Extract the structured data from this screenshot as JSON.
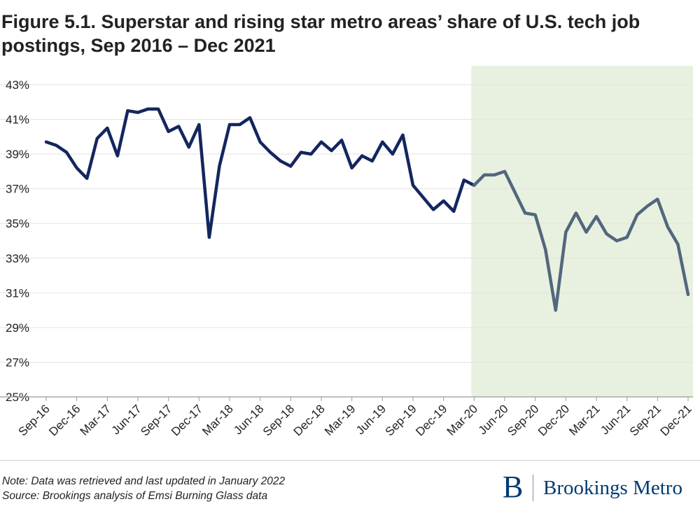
{
  "title": "Figure 5.1. Superstar and rising star metro areas’ share of U.S. tech job postings, Sep 2016 – Dec 2021",
  "note": "Note: Data was retrieved and last updated in January 2022",
  "source": "Source: Brookings analysis of Emsi Burning Glass data",
  "brand": {
    "mark": "B",
    "name": "Brookings Metro",
    "color": "#003a70"
  },
  "chart_data": {
    "type": "line",
    "ylim": [
      25,
      43
    ],
    "yticks": [
      "25%",
      "27%",
      "29%",
      "31%",
      "33%",
      "35%",
      "37%",
      "39%",
      "41%",
      "43%"
    ],
    "ytick_values": [
      25,
      27,
      29,
      31,
      33,
      35,
      37,
      39,
      41,
      43
    ],
    "xtick_labels": [
      "Sep-16",
      "Dec-16",
      "Mar-17",
      "Jun-17",
      "Sep-17",
      "Dec-17",
      "Mar-18",
      "Jun-18",
      "Sep-18",
      "Dec-18",
      "Mar-19",
      "Jun-19",
      "Sep-19",
      "Dec-19",
      "Mar-20",
      "Jun-20",
      "Sep-20",
      "Dec-20",
      "Mar-21",
      "Jun-21",
      "Sep-21",
      "Dec-21"
    ],
    "months": [
      "Sep-16",
      "Oct-16",
      "Nov-16",
      "Dec-16",
      "Jan-17",
      "Feb-17",
      "Mar-17",
      "Apr-17",
      "May-17",
      "Jun-17",
      "Jul-17",
      "Aug-17",
      "Sep-17",
      "Oct-17",
      "Nov-17",
      "Dec-17",
      "Jan-18",
      "Feb-18",
      "Mar-18",
      "Apr-18",
      "May-18",
      "Jun-18",
      "Jul-18",
      "Aug-18",
      "Sep-18",
      "Oct-18",
      "Nov-18",
      "Dec-18",
      "Jan-19",
      "Feb-19",
      "Mar-19",
      "Apr-19",
      "May-19",
      "Jun-19",
      "Jul-19",
      "Aug-19",
      "Sep-19",
      "Oct-19",
      "Nov-19",
      "Dec-19",
      "Jan-20",
      "Feb-20",
      "Mar-20",
      "Apr-20",
      "May-20",
      "Jun-20",
      "Jul-20",
      "Aug-20",
      "Sep-20",
      "Oct-20",
      "Nov-20",
      "Dec-20",
      "Jan-21",
      "Feb-21",
      "Mar-21",
      "Apr-21",
      "May-21",
      "Jun-21",
      "Jul-21",
      "Aug-21",
      "Sep-21",
      "Oct-21",
      "Nov-21",
      "Dec-21"
    ],
    "values": [
      39.7,
      39.5,
      39.1,
      38.2,
      37.6,
      39.9,
      40.5,
      38.9,
      41.5,
      41.4,
      41.6,
      41.6,
      40.3,
      40.6,
      39.4,
      40.7,
      34.2,
      38.3,
      40.7,
      40.7,
      41.1,
      39.7,
      39.1,
      38.6,
      38.3,
      39.1,
      39.0,
      39.7,
      39.2,
      39.8,
      38.2,
      38.9,
      38.6,
      39.7,
      39.0,
      40.1,
      37.2,
      36.5,
      35.8,
      36.3,
      35.7,
      37.5,
      37.2,
      37.8,
      37.8,
      38.0,
      36.8,
      35.6,
      35.5,
      33.5,
      30.0,
      34.5,
      35.6,
      34.5,
      35.4,
      34.4,
      34.0,
      34.2,
      35.5,
      36.0,
      36.4,
      34.8,
      33.8,
      30.9
    ],
    "highlight_range": [
      "Mar-20",
      "Dec-21"
    ],
    "colors": {
      "pre": "#14265e",
      "post": "#52677e",
      "highlight_fill": "#e8f0df",
      "grid": "#e3e3e3",
      "axis": "#9a9a9a"
    }
  }
}
